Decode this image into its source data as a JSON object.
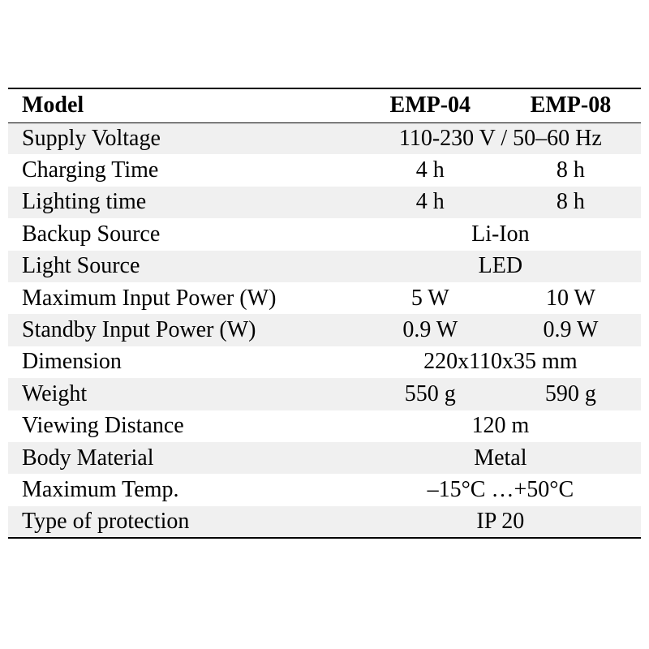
{
  "table": {
    "header": [
      "Model",
      "EMP-04",
      "EMP-08"
    ],
    "rows": [
      [
        "Supply Voltage",
        "110-230 V / 50–60 Hz"
      ],
      [
        "Charging Time",
        "4 h",
        "8 h"
      ],
      [
        "Lighting time",
        "4 h",
        "8 h"
      ],
      [
        "Backup Source",
        "Li-Ion"
      ],
      [
        "Light Source",
        "LED"
      ],
      [
        "Maximum Input Power (W)",
        "5 W",
        "10 W"
      ],
      [
        "Standby Input Power (W)",
        "0.9 W",
        "0.9 W"
      ],
      [
        "Dimension",
        "220x110x35 mm"
      ],
      [
        "Weight",
        "550 g",
        "590 g"
      ],
      [
        "Viewing Distance",
        "120 m"
      ],
      [
        "Body Material",
        "Metal"
      ],
      [
        "Maximum Temp.",
        "–15°C …+50°C"
      ],
      [
        "Type of protection",
        "IP 20"
      ]
    ]
  }
}
